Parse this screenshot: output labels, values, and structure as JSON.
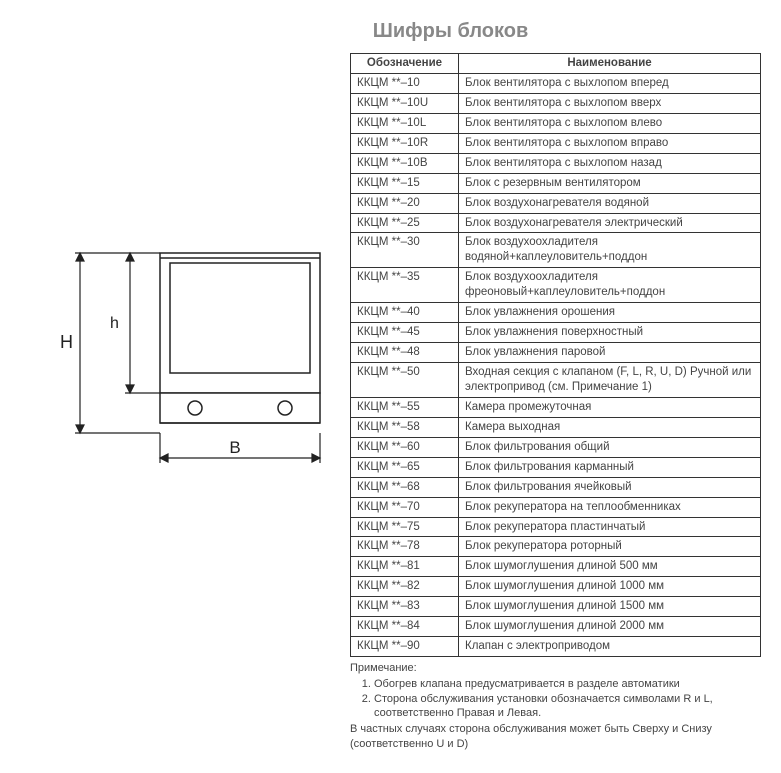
{
  "title": "Шифры блоков",
  "table": {
    "headers": [
      "Обозначение",
      "Наименование"
    ],
    "rows": [
      [
        "ККЦМ **–10",
        "Блок вентилятора с выхлопом вперед"
      ],
      [
        "ККЦМ **–10U",
        "Блок вентилятора с выхлопом вверх"
      ],
      [
        "ККЦМ **–10L",
        "Блок вентилятора с выхлопом влево"
      ],
      [
        "ККЦМ **–10R",
        "Блок вентилятора с выхлопом вправо"
      ],
      [
        "ККЦМ **–10B",
        "Блок вентилятора с выхлопом назад"
      ],
      [
        "ККЦМ **–15",
        "Блок с резервным вентилятором"
      ],
      [
        "ККЦМ **–20",
        "Блок воздухонагревателя водяной"
      ],
      [
        "ККЦМ **–25",
        "Блок воздухонагревателя электрический"
      ],
      [
        "ККЦМ **–30",
        "Блок воздухоохладителя водяной+каплеуловитель+поддон"
      ],
      [
        "ККЦМ **–35",
        "Блок воздухоохладителя фреоновый+каплеуловитель+поддон"
      ],
      [
        "ККЦМ **–40",
        "Блок увлажнения орошения"
      ],
      [
        "ККЦМ **–45",
        "Блок увлажнения поверхностный"
      ],
      [
        "ККЦМ **–48",
        "Блок увлажнения паровой"
      ],
      [
        "ККЦМ **–50",
        "Входная секция  с клапаном (F, L, R, U, D) Ручной или электропривод (см. Примечание 1)"
      ],
      [
        "ККЦМ **–55",
        "Камера промежуточная"
      ],
      [
        "ККЦМ **–58",
        "Камера выходная"
      ],
      [
        "ККЦМ **–60",
        "Блок фильтрования общий"
      ],
      [
        "ККЦМ **–65",
        "Блок фильтрования карманный"
      ],
      [
        "ККЦМ **–68",
        "Блок фильтрования ячейковый"
      ],
      [
        "ККЦМ **–70",
        "Блок рекуператора на теплообменниках"
      ],
      [
        "ККЦМ **–75",
        "Блок рекуператора пластинчатый"
      ],
      [
        "ККЦМ **–78",
        "Блок рекуператора роторный"
      ],
      [
        "ККЦМ **–81",
        "Блок шумоглушения длиной 500 мм"
      ],
      [
        "ККЦМ **–82",
        "Блок шумоглушения длиной 1000 мм"
      ],
      [
        "ККЦМ **–83",
        "Блок шумоглушения длиной 1500 мм"
      ],
      [
        "ККЦМ **–84",
        "Блок шумоглушения длиной 2000 мм"
      ],
      [
        "ККЦМ **–90",
        "Клапан с электроприводом"
      ]
    ]
  },
  "notes": {
    "heading": "Примечание:",
    "items": [
      "Обогрев клапана предусматривается в разделе автоматики",
      "Сторона обслуживания установки обозначается символами R и L, соответственно Правая и Левая."
    ],
    "trailer": "В частных случаях сторона обслуживания может быть Сверху и Снизу (соответственно U и D)"
  },
  "diagram": {
    "labels": {
      "H": "H",
      "h": "h",
      "B": "B"
    },
    "stroke": "#222222",
    "fill": "#ffffff"
  }
}
